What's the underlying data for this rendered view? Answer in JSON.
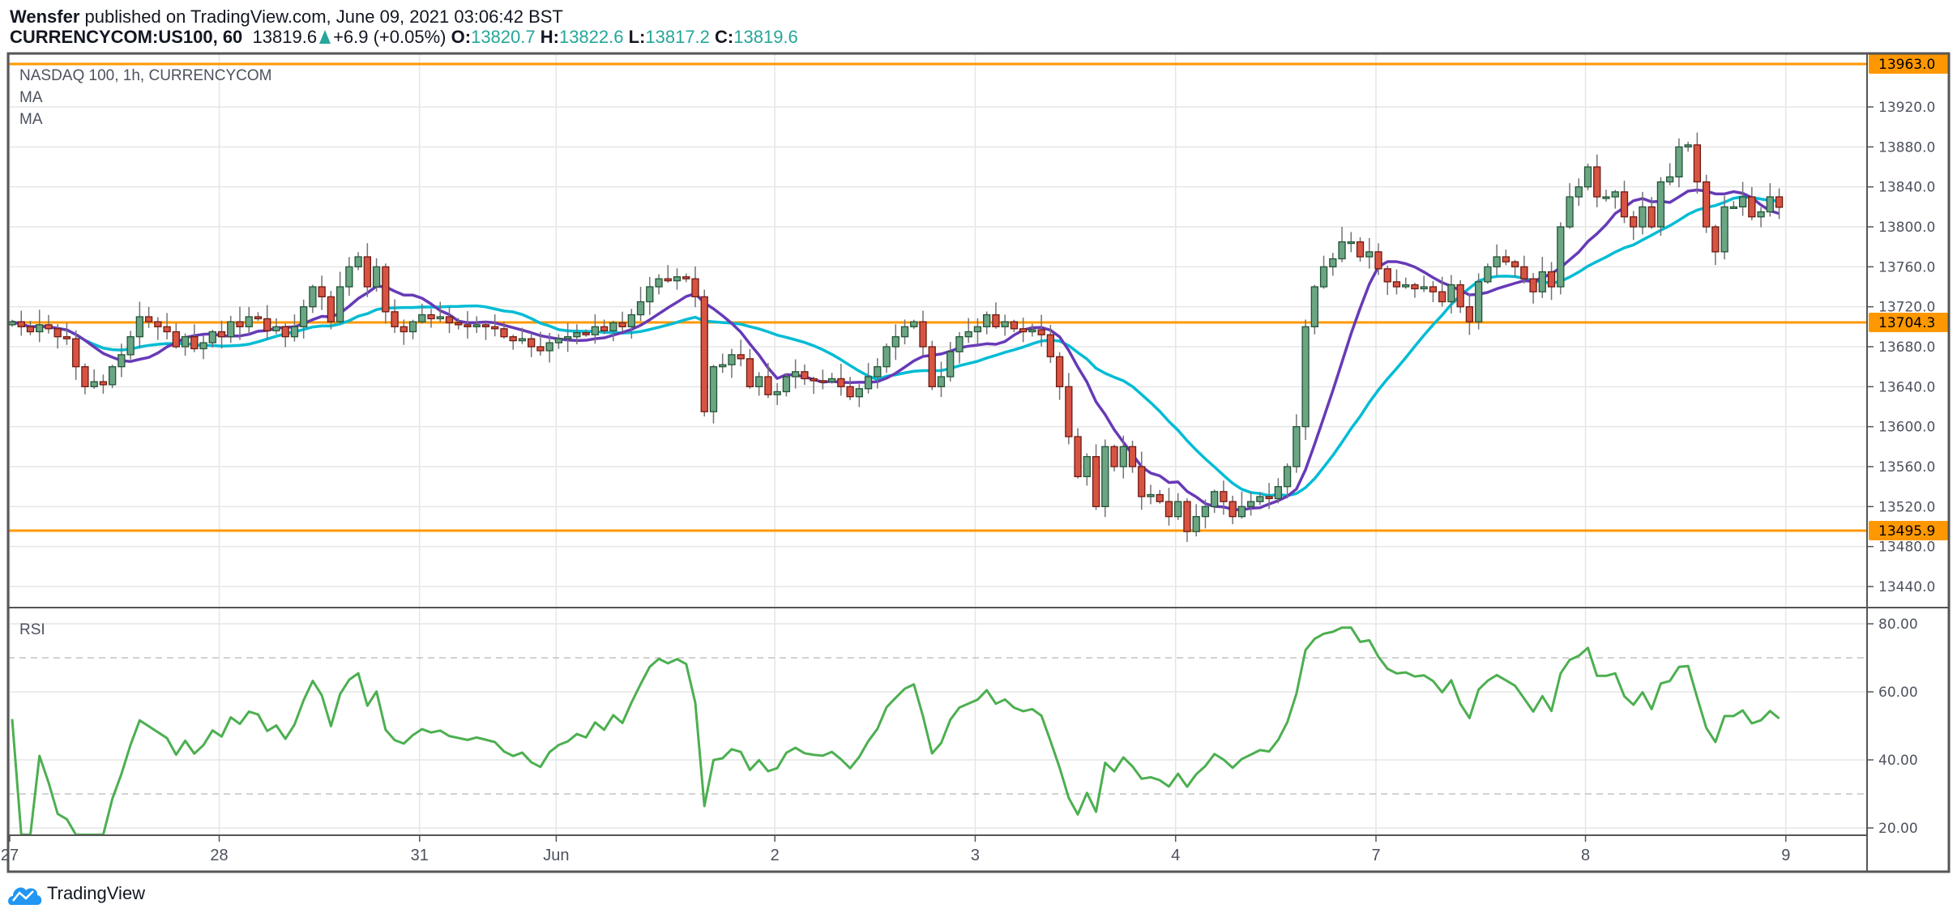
{
  "header": {
    "author": "Wensfer",
    "published": "published on TradingView.com, June 09, 2021 03:06:42 BST",
    "symbol": "CURRENCYCOM:US100, 60",
    "last": "13819.6",
    "change": "+6.9 (+0.05%)",
    "o_label": "O:",
    "o": "13820.7",
    "h_label": "H:",
    "h": "13822.6",
    "l_label": "L:",
    "l": "13817.2",
    "c_label": "C:",
    "c": "13819.6"
  },
  "legend": {
    "title": "NASDAQ 100, 1h, CURRENCYCOM",
    "ma1": "MA",
    "ma2": "MA",
    "rsi": "RSI"
  },
  "footer": {
    "brand": "TradingView"
  },
  "colors": {
    "up": "#6ba583",
    "up_border": "#225437",
    "down": "#d75442",
    "down_border": "#6e1a12",
    "wick": "#737375",
    "ma_fast": "#673ab7",
    "ma_slow": "#00bcd4",
    "level": "#ff9800",
    "rsi": "#4caf50",
    "teal": "#26a69a"
  },
  "chart_data": [
    {
      "type": "candlestick",
      "title": "NASDAQ 100, 1h, CURRENCYCOM",
      "interval": "1h",
      "ylim": [
        13410,
        13980
      ],
      "y_ticks": [
        "13920.0",
        "13880.0",
        "13840.0",
        "13800.0",
        "13760.0",
        "13720.0",
        "13680.0",
        "13640.0",
        "13600.0",
        "13560.0",
        "13520.0",
        "13480.0",
        "13440.0"
      ],
      "y_tick_values": [
        13920,
        13880,
        13840,
        13800,
        13760,
        13720,
        13680,
        13640,
        13600,
        13560,
        13520,
        13480,
        13440
      ],
      "x_ticks": [
        {
          "label": "27",
          "bar": 0
        },
        {
          "label": "28",
          "bar": 23
        },
        {
          "label": "31",
          "bar": 45
        },
        {
          "label": "Jun",
          "bar": 60
        },
        {
          "label": "2",
          "bar": 84
        },
        {
          "label": "3",
          "bar": 106
        },
        {
          "label": "4",
          "bar": 128
        },
        {
          "label": "7",
          "bar": 150
        },
        {
          "label": "8",
          "bar": 173
        },
        {
          "label": "9",
          "bar": 195
        }
      ],
      "horizontal_levels": [
        {
          "value": 13963.0,
          "label": "13963.0"
        },
        {
          "value": 13704.3,
          "label": "13704.3"
        },
        {
          "value": 13495.9,
          "label": "13495.9"
        }
      ],
      "moving_averages": [
        {
          "name": "MA",
          "period": 9
        },
        {
          "name": "MA",
          "period": 20
        }
      ],
      "closes": [
        13705,
        13700,
        13695,
        13702,
        13698,
        13690,
        13688,
        13660,
        13640,
        13645,
        13642,
        13660,
        13672,
        13690,
        13710,
        13705,
        13700,
        13695,
        13680,
        13690,
        13678,
        13684,
        13695,
        13690,
        13705,
        13700,
        13710,
        13708,
        13696,
        13700,
        13690,
        13700,
        13720,
        13740,
        13730,
        13705,
        13740,
        13760,
        13770,
        13740,
        13760,
        13715,
        13700,
        13695,
        13705,
        13712,
        13708,
        13710,
        13704,
        13702,
        13700,
        13702,
        13700,
        13698,
        13690,
        13686,
        13688,
        13680,
        13676,
        13684,
        13688,
        13690,
        13694,
        13692,
        13700,
        13696,
        13704,
        13700,
        13712,
        13725,
        13740,
        13748,
        13746,
        13750,
        13748,
        13730,
        13615,
        13660,
        13662,
        13672,
        13668,
        13640,
        13650,
        13632,
        13635,
        13650,
        13655,
        13648,
        13646,
        13645,
        13648,
        13640,
        13630,
        13638,
        13650,
        13660,
        13680,
        13690,
        13700,
        13705,
        13680,
        13640,
        13650,
        13675,
        13690,
        13695,
        13700,
        13712,
        13700,
        13705,
        13698,
        13695,
        13697,
        13692,
        13670,
        13640,
        13590,
        13550,
        13570,
        13520,
        13580,
        13560,
        13580,
        13560,
        13530,
        13532,
        13525,
        13510,
        13525,
        13495,
        13510,
        13520,
        13535,
        13525,
        13510,
        13520,
        13525,
        13530,
        13528,
        13540,
        13560,
        13600,
        13700,
        13740,
        13760,
        13768,
        13785,
        13785,
        13770,
        13775,
        13758,
        13745,
        13740,
        13742,
        13738,
        13740,
        13735,
        13725,
        13742,
        13720,
        13705,
        13745,
        13760,
        13770,
        13765,
        13760,
        13748,
        13735,
        13755,
        13740,
        13800,
        13830,
        13840,
        13860,
        13830,
        13830,
        13835,
        13810,
        13800,
        13820,
        13800,
        13845,
        13850,
        13880,
        13882,
        13845,
        13800,
        13775,
        13820,
        13820,
        13830,
        13810,
        13815,
        13830,
        13819.6
      ]
    },
    {
      "type": "line",
      "title": "RSI",
      "ylim": [
        15,
        85
      ],
      "y_ticks": [
        "80.00",
        "60.00",
        "40.00",
        "20.00"
      ],
      "y_tick_values": [
        80,
        60,
        40,
        20
      ],
      "bands": [
        70,
        30
      ],
      "period": 14
    }
  ]
}
